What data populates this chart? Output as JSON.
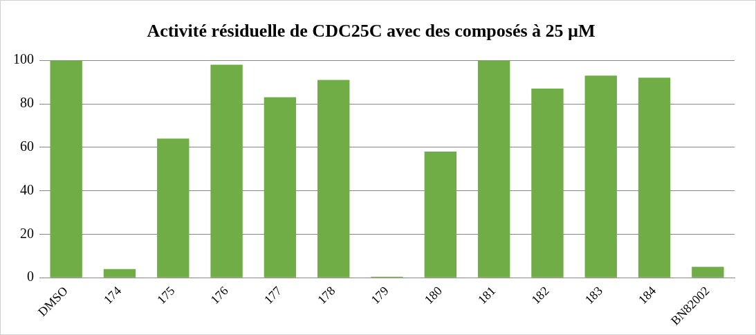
{
  "chart_data": {
    "type": "bar",
    "title": "Activité résiduelle de CDC25C avec des composés à 25 µM",
    "categories": [
      "DMSO",
      "174",
      "175",
      "176",
      "177",
      "178",
      "179",
      "180",
      "181",
      "182",
      "183",
      "184",
      "BN82002"
    ],
    "values": [
      100,
      4,
      64,
      98,
      83,
      91,
      0.5,
      58,
      100,
      87,
      93,
      92,
      5
    ],
    "color": "#70ad47",
    "ylim": [
      0,
      100
    ],
    "yticks": [
      0,
      20,
      40,
      60,
      80,
      100
    ],
    "grid": "y"
  }
}
